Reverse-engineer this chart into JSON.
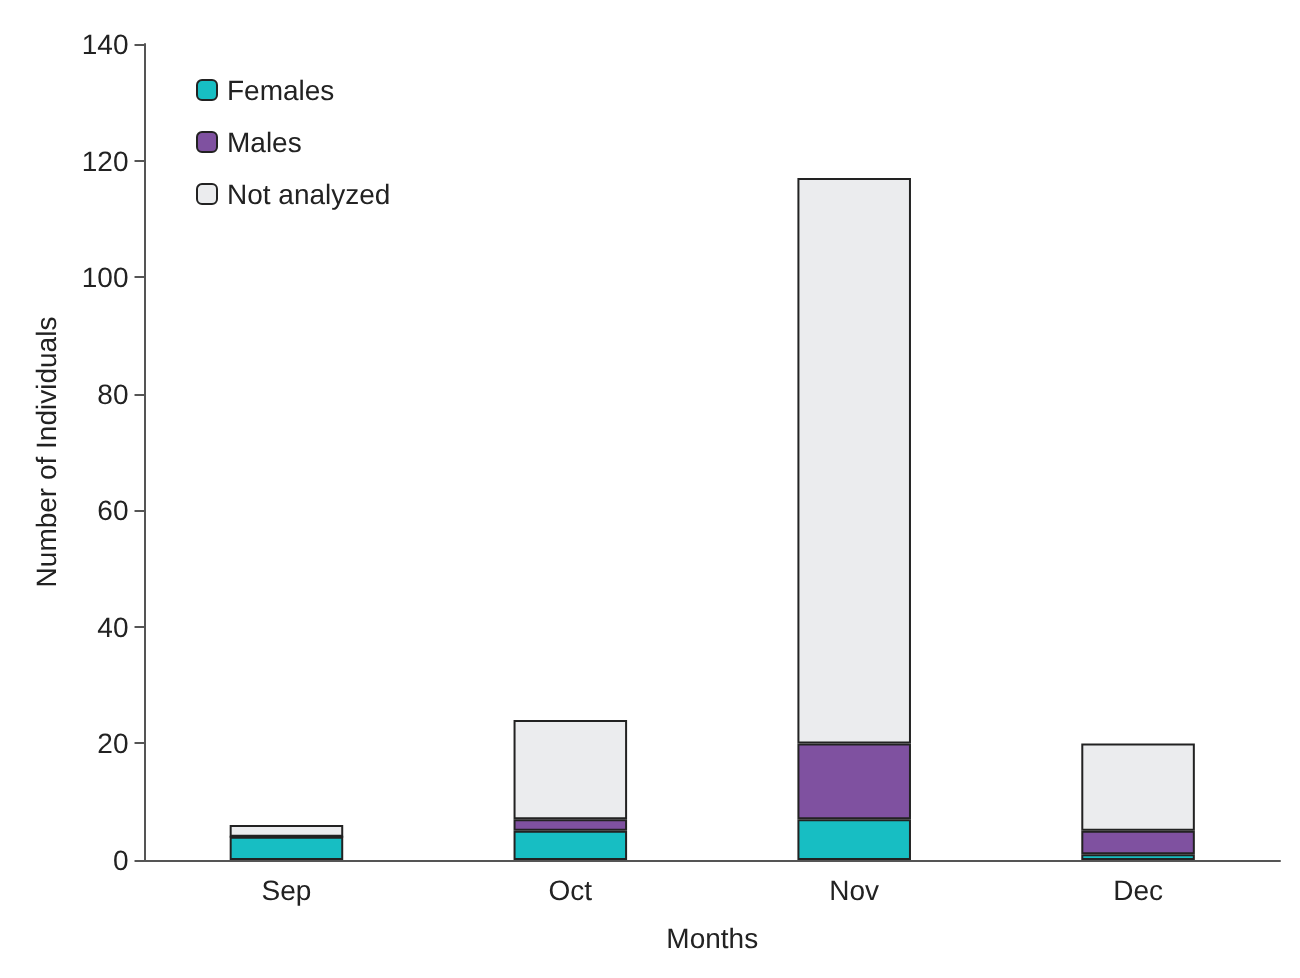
{
  "chart_data": {
    "type": "bar",
    "stacked": true,
    "xlabel": "Months",
    "ylabel": "Number of Individuals",
    "categories": [
      "Sep",
      "Oct",
      "Nov",
      "Dec"
    ],
    "series": [
      {
        "name": "Females",
        "color": "#17bec3",
        "values": [
          4,
          5,
          7,
          1
        ]
      },
      {
        "name": "Males",
        "color": "#7f51a0",
        "values": [
          0,
          2,
          13,
          4
        ]
      },
      {
        "name": "Not analyzed",
        "color": "#ebecee",
        "values": [
          2,
          17,
          97,
          15
        ]
      }
    ],
    "ylim": [
      0,
      140
    ],
    "yticks": [
      0,
      20,
      40,
      60,
      80,
      100,
      120,
      140
    ],
    "grid": false,
    "legend": "top left"
  }
}
